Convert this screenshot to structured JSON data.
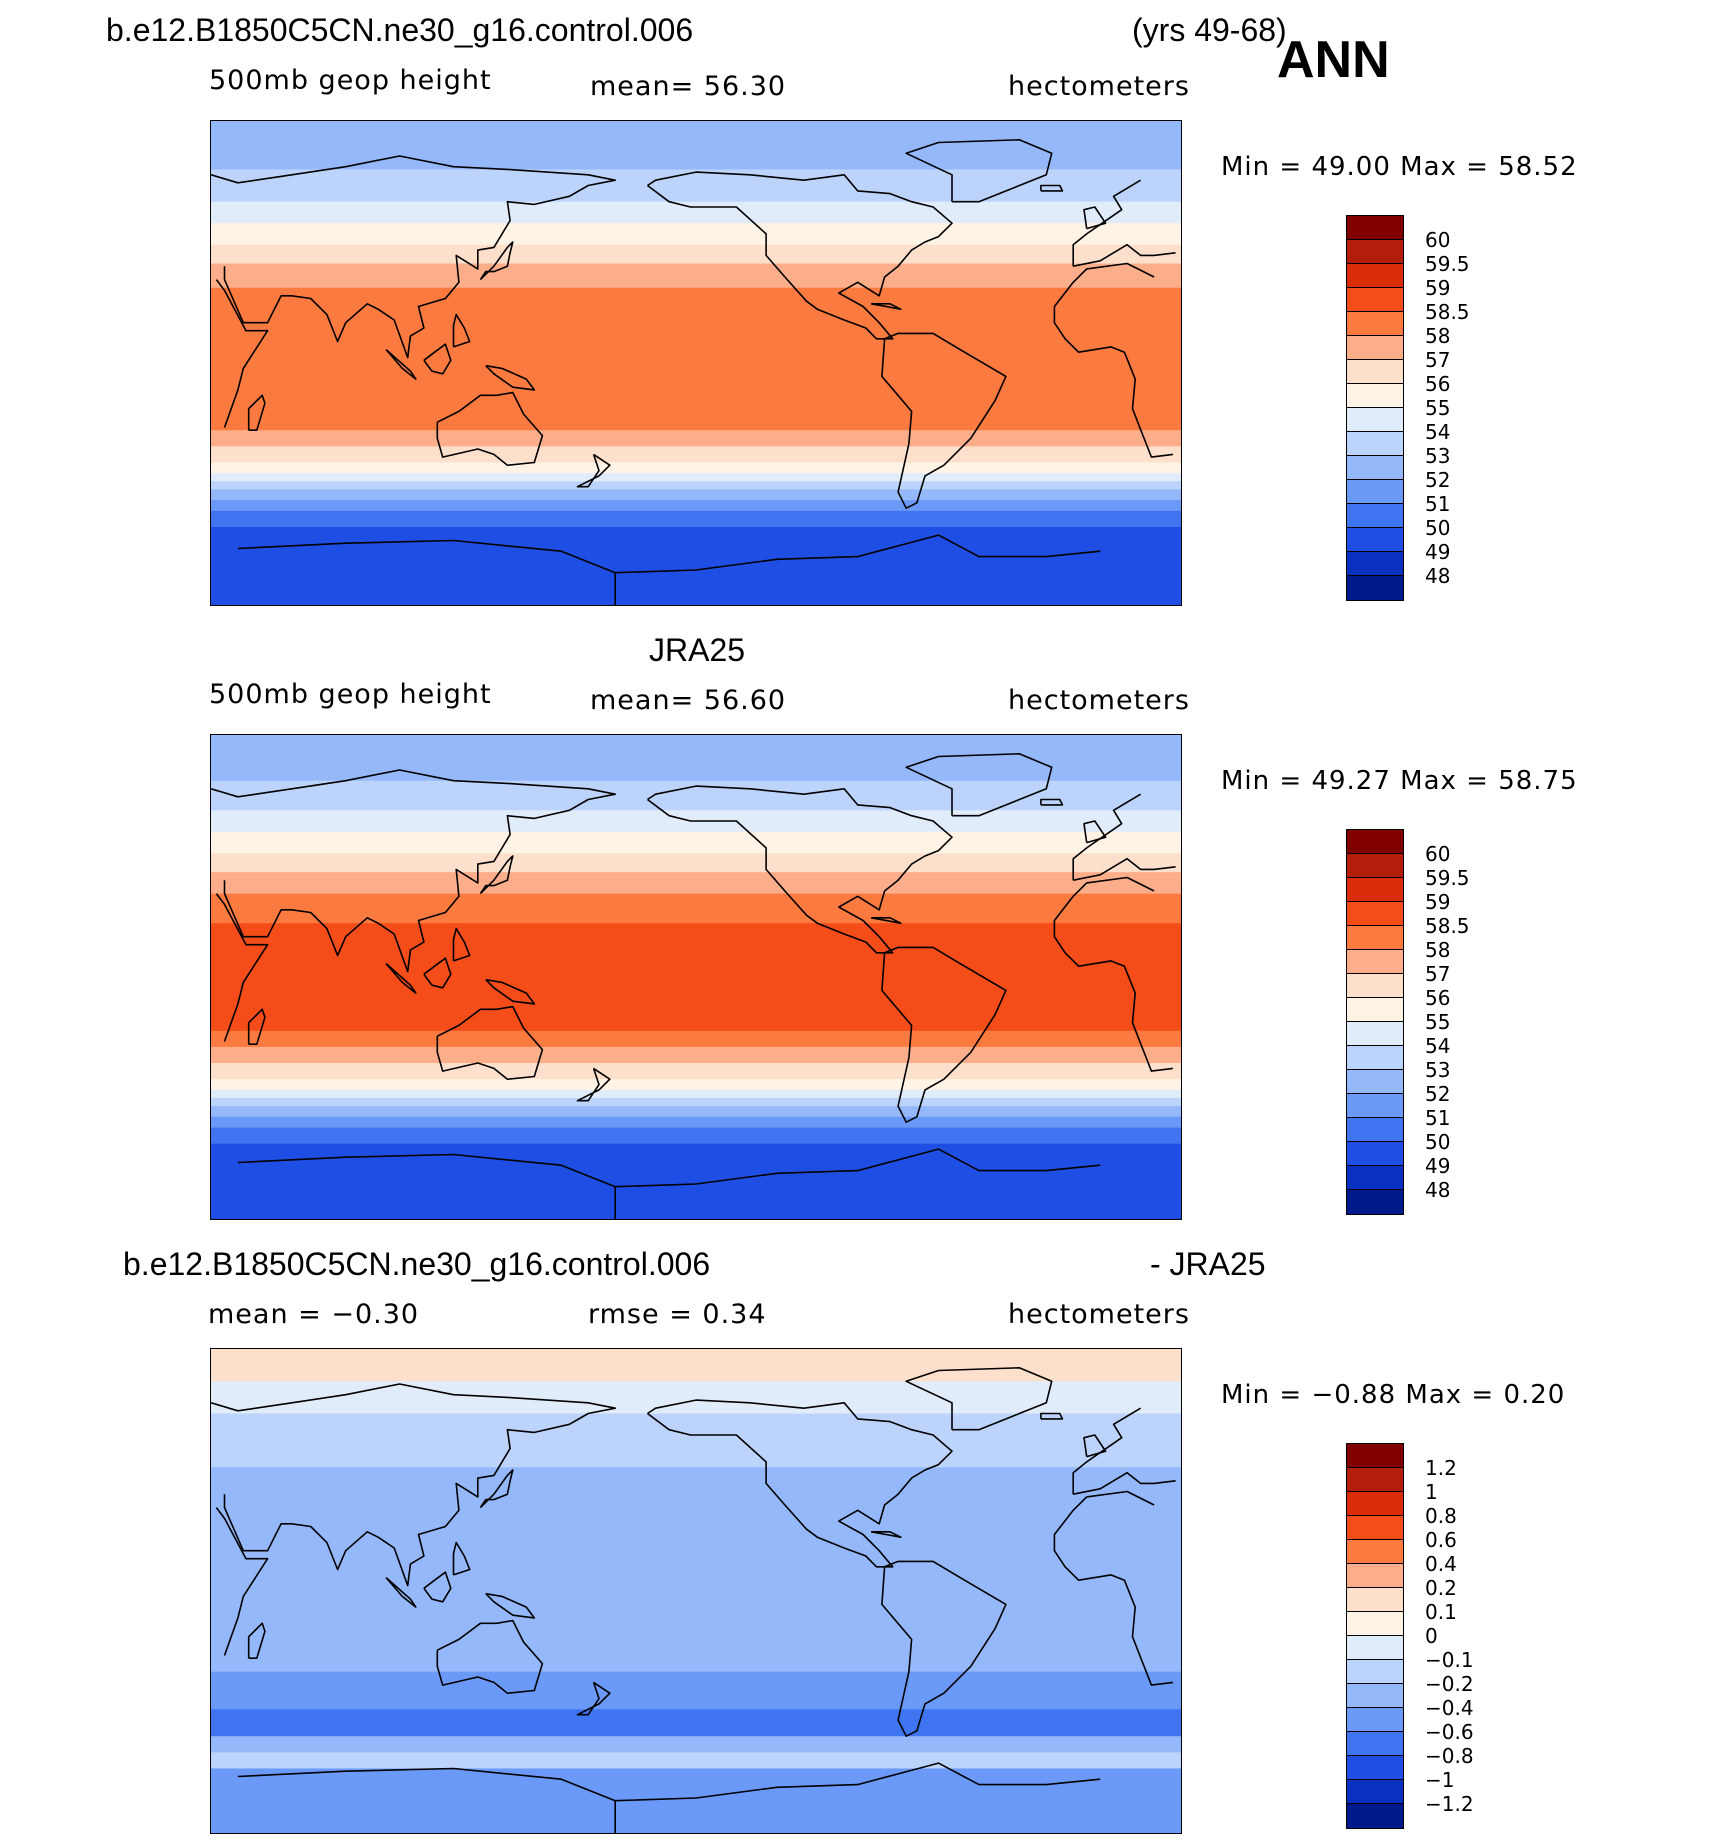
{
  "header": {
    "case_name": "b.e12.B1850C5CN.ne30_g16.control.006",
    "years": "(yrs 49-68)",
    "season": "ANN"
  },
  "panels": [
    {
      "id": "model",
      "title": "",
      "variable": "500mb geop height",
      "stat1": "mean=   56.30",
      "stat2": "",
      "units": "hectometers",
      "minmax": "Min =   49.00  Max =   58.52",
      "colorbar": {
        "labels": [
          "60",
          "59.5",
          "59",
          "58.5",
          "58",
          "57",
          "56",
          "55",
          "54",
          "53",
          "52",
          "51",
          "50",
          "49",
          "48"
        ],
        "colors": [
          "#800000",
          "#b21e0b",
          "#d92d07",
          "#f44d19",
          "#fb7a3f",
          "#fcae8a",
          "#fde0cc",
          "#fff3e6",
          "#e1ecfb",
          "#bcd4fb",
          "#94b8fa",
          "#6b99f7",
          "#3f75f0",
          "#1e4ee4",
          "#0a30bf",
          "#001a8c"
        ]
      },
      "bands": [
        {
          "lat": 90,
          "color": "#94b8fa"
        },
        {
          "lat": 72,
          "color": "#bcd4fb"
        },
        {
          "lat": 60,
          "color": "#e1ecfb"
        },
        {
          "lat": 52,
          "color": "#fff3e6"
        },
        {
          "lat": 44,
          "color": "#fde0cc"
        },
        {
          "lat": 37,
          "color": "#fcae8a"
        },
        {
          "lat": 28,
          "color": "#fb7a3f"
        },
        {
          "lat": -25,
          "color": "#fcae8a"
        },
        {
          "lat": -31,
          "color": "#fde0cc"
        },
        {
          "lat": -37,
          "color": "#fff3e6"
        },
        {
          "lat": -41,
          "color": "#e1ecfb"
        },
        {
          "lat": -44,
          "color": "#bcd4fb"
        },
        {
          "lat": -47,
          "color": "#94b8fa"
        },
        {
          "lat": -51,
          "color": "#6b99f7"
        },
        {
          "lat": -55,
          "color": "#3f75f0"
        },
        {
          "lat": -61,
          "color": "#1e4ee4"
        }
      ]
    },
    {
      "id": "obs",
      "title": "JRA25",
      "variable": "500mb geop height",
      "stat1": "mean=   56.60",
      "stat2": "",
      "units": "hectometers",
      "minmax": "Min =   49.27  Max =   58.75",
      "colorbar": {
        "labels": [
          "60",
          "59.5",
          "59",
          "58.5",
          "58",
          "57",
          "56",
          "55",
          "54",
          "53",
          "52",
          "51",
          "50",
          "49",
          "48"
        ],
        "colors": [
          "#800000",
          "#b21e0b",
          "#d92d07",
          "#f44d19",
          "#fb7a3f",
          "#fcae8a",
          "#fde0cc",
          "#fff3e6",
          "#e1ecfb",
          "#bcd4fb",
          "#94b8fa",
          "#6b99f7",
          "#3f75f0",
          "#1e4ee4",
          "#0a30bf",
          "#001a8c"
        ]
      },
      "bands": [
        {
          "lat": 90,
          "color": "#94b8fa"
        },
        {
          "lat": 73,
          "color": "#bcd4fb"
        },
        {
          "lat": 62,
          "color": "#e1ecfb"
        },
        {
          "lat": 54,
          "color": "#fff3e6"
        },
        {
          "lat": 46,
          "color": "#fde0cc"
        },
        {
          "lat": 39,
          "color": "#fcae8a"
        },
        {
          "lat": 31,
          "color": "#fb7a3f"
        },
        {
          "lat": 20,
          "color": "#f44d19"
        },
        {
          "lat": -20,
          "color": "#fb7a3f"
        },
        {
          "lat": -26,
          "color": "#fcae8a"
        },
        {
          "lat": -32,
          "color": "#fde0cc"
        },
        {
          "lat": -38,
          "color": "#fff3e6"
        },
        {
          "lat": -42,
          "color": "#e1ecfb"
        },
        {
          "lat": -45,
          "color": "#bcd4fb"
        },
        {
          "lat": -48,
          "color": "#94b8fa"
        },
        {
          "lat": -52,
          "color": "#6b99f7"
        },
        {
          "lat": -56,
          "color": "#3f75f0"
        },
        {
          "lat": -62,
          "color": "#1e4ee4"
        }
      ]
    },
    {
      "id": "diff",
      "title": "b.e12.B1850C5CN.ne30_g16.control.006",
      "title_suffix": "- JRA25",
      "variable": "",
      "stat1": "mean =   −0.30",
      "stat2": "rmse =    0.34",
      "units": "hectometers",
      "minmax": "Min =   −0.88  Max =    0.20",
      "colorbar": {
        "labels": [
          "1.2",
          "1",
          "0.8",
          "0.6",
          "0.4",
          "0.2",
          "0.1",
          "0",
          "−0.1",
          "−0.2",
          "−0.4",
          "−0.6",
          "−0.8",
          "−1",
          "−1.2"
        ],
        "colors": [
          "#800000",
          "#b21e0b",
          "#d92d07",
          "#f44d19",
          "#fb7a3f",
          "#fcae8a",
          "#fde0cc",
          "#fff3e6",
          "#e1ecfb",
          "#bcd4fb",
          "#94b8fa",
          "#6b99f7",
          "#3f75f0",
          "#1e4ee4",
          "#0a30bf",
          "#001a8c"
        ]
      },
      "bands": [
        {
          "lat": 90,
          "color": "#fde0cc"
        },
        {
          "lat": 78,
          "color": "#e1ecfb"
        },
        {
          "lat": 66,
          "color": "#bcd4fb"
        },
        {
          "lat": 46,
          "color": "#94b8fa"
        },
        {
          "lat": -30,
          "color": "#6b99f7"
        },
        {
          "lat": -44,
          "color": "#3f75f0"
        },
        {
          "lat": -54,
          "color": "#94b8fa"
        },
        {
          "lat": -60,
          "color": "#bcd4fb"
        },
        {
          "lat": -66,
          "color": "#6b99f7"
        }
      ]
    }
  ],
  "icons": {
    "coastline": "coastline-icon"
  }
}
